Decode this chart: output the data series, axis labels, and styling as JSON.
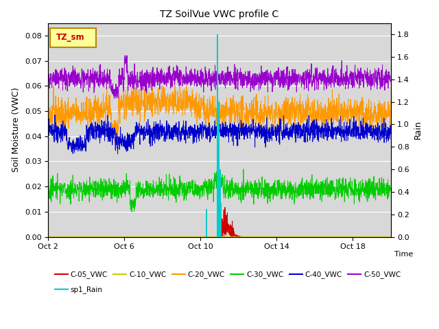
{
  "title": "TZ SoilVue VWC profile C",
  "ylabel_left": "Soil Moisture (VWC)",
  "ylabel_right": "Rain",
  "xlim_days": [
    0,
    18
  ],
  "ylim_left": [
    0.0,
    0.085
  ],
  "ylim_right": [
    0.0,
    1.9
  ],
  "bg_color": "#d8d8d8",
  "legend_box_color": "#ffff99",
  "legend_box_edge": "#bb8800",
  "series_colors": {
    "C05": "#cc0000",
    "C10": "#cccc00",
    "C20": "#ff9900",
    "C30": "#00cc00",
    "C40": "#0000cc",
    "C50": "#9900cc"
  },
  "rain_color": "#00cccc",
  "xtick_labels": [
    "Oct 2",
    "Oct 6",
    "Oct 10",
    "Oct 14",
    "Oct 18"
  ],
  "xtick_positions": [
    0,
    4,
    8,
    12,
    16
  ],
  "yticks_left": [
    0.0,
    0.01,
    0.02,
    0.03,
    0.04,
    0.05,
    0.06,
    0.07,
    0.08
  ],
  "yticks_right": [
    0.0,
    0.2,
    0.4,
    0.6,
    0.8,
    1.0,
    1.2,
    1.4,
    1.6,
    1.8
  ]
}
